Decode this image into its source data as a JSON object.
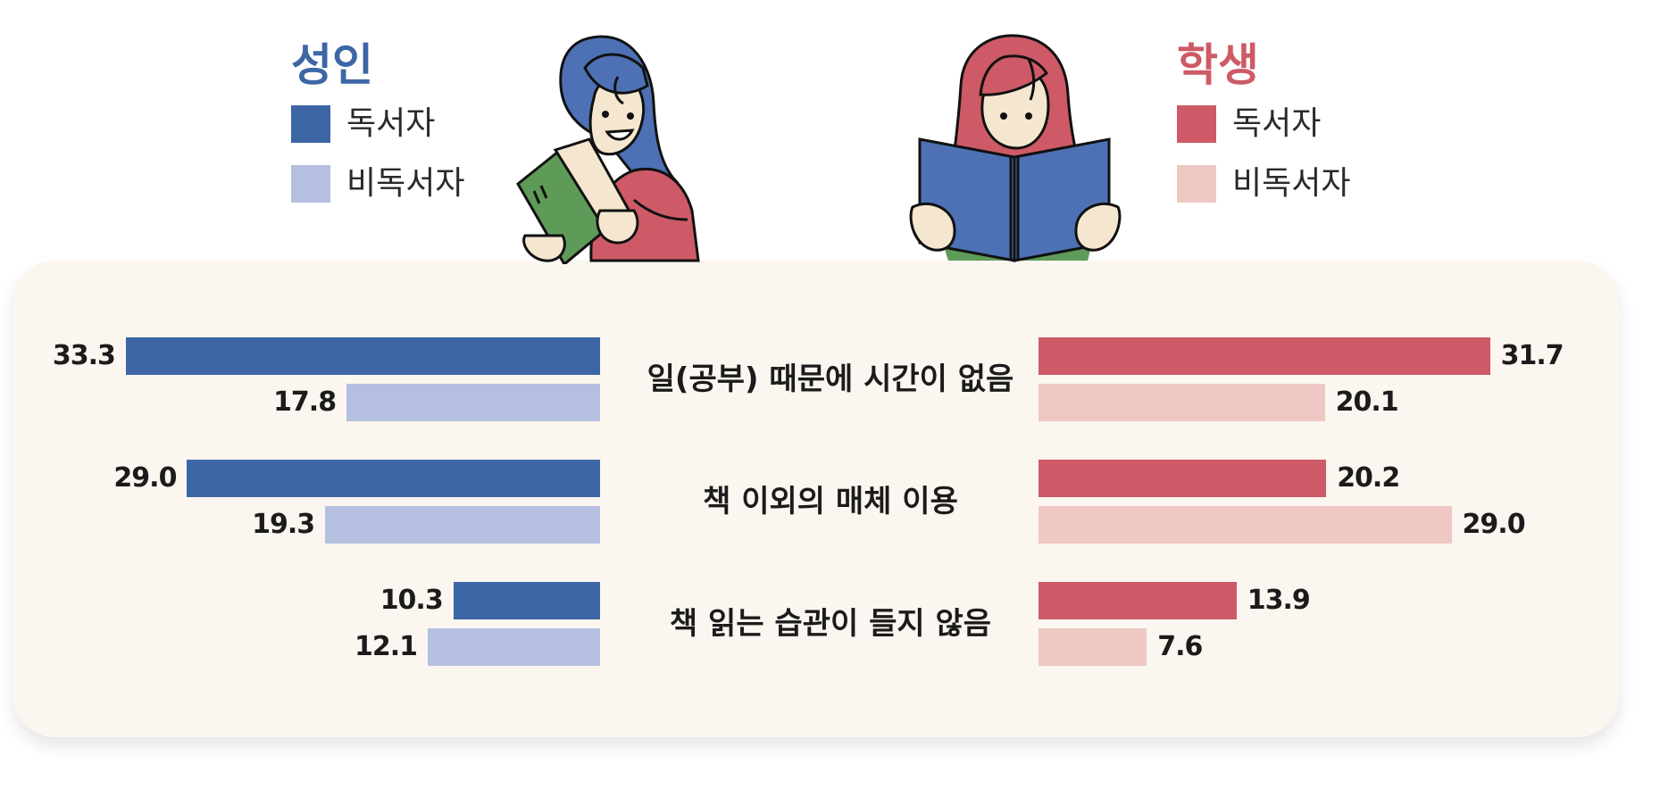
{
  "legend": {
    "adult": {
      "title": "성인",
      "title_color": "#3d66a6",
      "items": [
        {
          "label": "독서자",
          "color": "#3d66a6"
        },
        {
          "label": "비독서자",
          "color": "#b5c0e0"
        }
      ]
    },
    "student": {
      "title": "학생",
      "title_color": "#cd5a66",
      "items": [
        {
          "label": "독서자",
          "color": "#cd5a66"
        },
        {
          "label": "비독서자",
          "color": "#efc8c3"
        }
      ]
    }
  },
  "illustrations": {
    "left_icon": "person-reading-green-book-icon",
    "right_icon": "person-reading-blue-book-icon"
  },
  "chart_data": {
    "type": "bar",
    "orientation": "horizontal",
    "layout": "butterfly",
    "categories": [
      "일(공부) 때문에 시간이 없음",
      "책 이외의 매체 이용",
      "책 읽는 습관이 들지 않음"
    ],
    "groups": [
      {
        "name": "성인",
        "side": "left",
        "series": [
          {
            "name": "독서자",
            "color": "#3d66a6",
            "values": [
              33.3,
              29.0,
              10.3
            ],
            "labels": [
              "33.3",
              "29.0",
              "10.3"
            ]
          },
          {
            "name": "비독서자",
            "color": "#b5c0e0",
            "values": [
              17.8,
              19.3,
              12.1
            ],
            "labels": [
              "17.8",
              "19.3",
              "12.1"
            ]
          }
        ]
      },
      {
        "name": "학생",
        "side": "right",
        "series": [
          {
            "name": "독서자",
            "color": "#cd5a66",
            "values": [
              31.7,
              20.2,
              13.9
            ],
            "labels": [
              "31.7",
              "20.2",
              "13.9"
            ]
          },
          {
            "name": "비독서자",
            "color": "#efc8c3",
            "values": [
              20.1,
              29.0,
              7.6
            ],
            "labels": [
              "20.1",
              "29.0",
              "7.6"
            ]
          }
        ]
      }
    ],
    "xlim": [
      0,
      35
    ],
    "grid": false
  }
}
